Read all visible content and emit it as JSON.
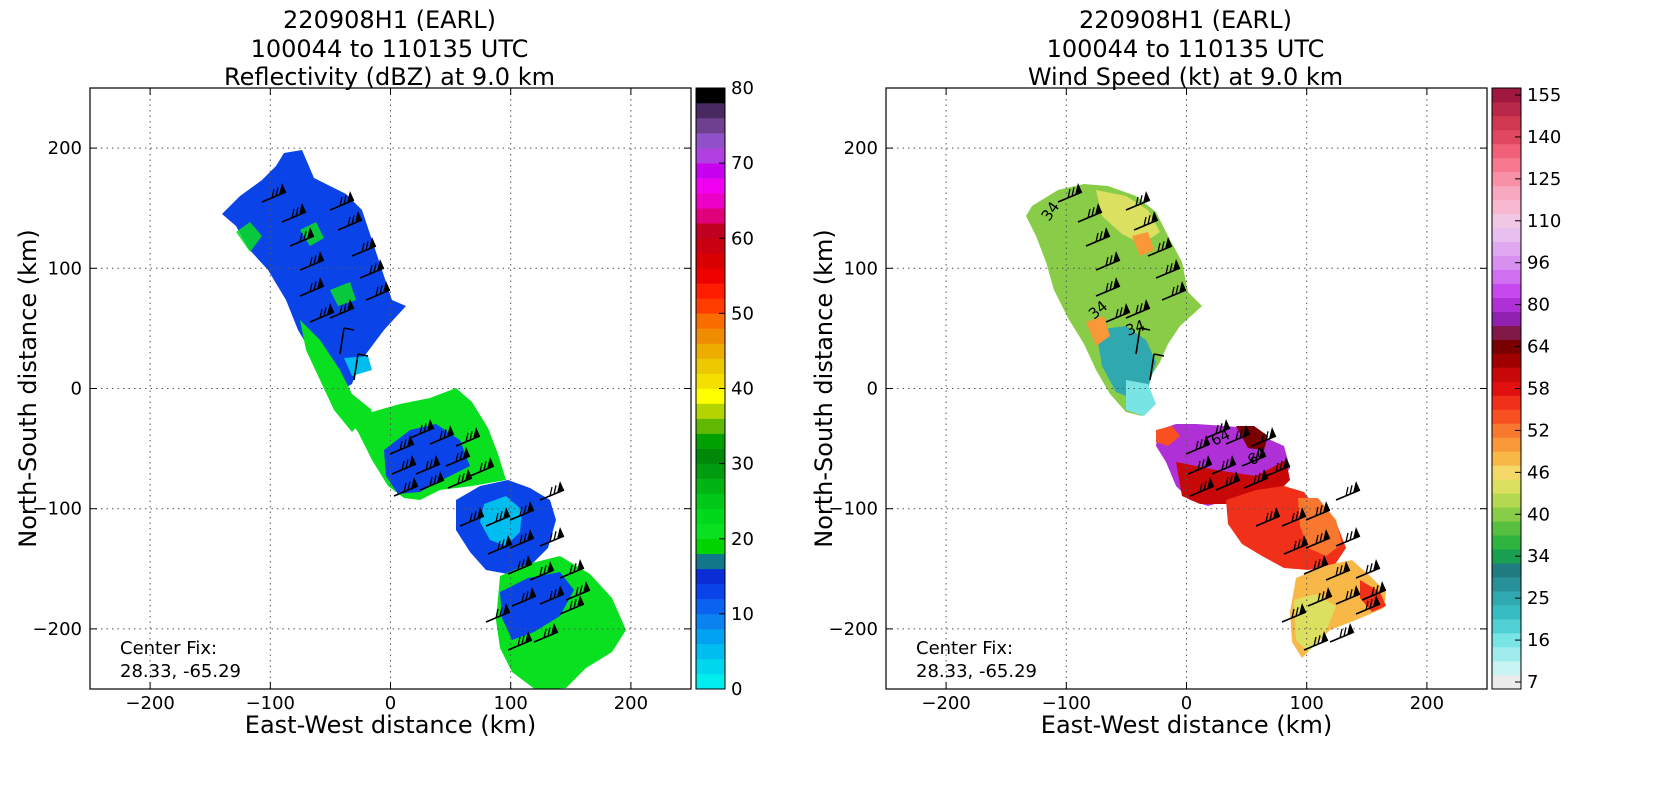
{
  "panels": [
    {
      "title_lines": [
        "220908H1 (EARL)",
        "100044 to 110135 UTC",
        "Reflectivity (dBZ) at 9.0 km"
      ],
      "xlabel": "East-West distance (km)",
      "ylabel": "North-South distance (km)",
      "center_fix_lines": [
        "Center Fix:",
        "28.33, -65.29"
      ]
    },
    {
      "title_lines": [
        "220908H1 (EARL)",
        "100044 to 110135 UTC",
        "Wind Speed (kt) at 9.0 km"
      ],
      "xlabel": "East-West distance (km)",
      "ylabel": "North-South distance (km)",
      "center_fix_lines": [
        "Center Fix:",
        "28.33, -65.29"
      ]
    }
  ],
  "chart_data": [
    {
      "type": "heatmap",
      "title": "220908H1 (EARL) 100044 to 110135 UTC Reflectivity (dBZ) at 9.0 km",
      "xlabel": "East-West distance (km)",
      "ylabel": "North-South distance (km)",
      "xlim": [
        -250,
        250
      ],
      "ylim": [
        -250,
        250
      ],
      "xticks": [
        -200,
        -100,
        0,
        100,
        200
      ],
      "yticks": [
        -200,
        -100,
        0,
        100,
        200
      ],
      "grid": true,
      "colorbar": {
        "label_ticks": [
          0,
          10,
          20,
          30,
          40,
          50,
          60,
          70,
          80
        ],
        "levels": [
          0,
          2.5,
          5,
          7.5,
          10,
          12.5,
          15,
          17.5,
          20,
          22.5,
          25,
          27.5,
          30,
          32.5,
          35,
          37.5,
          40,
          42.5,
          45,
          47.5,
          50,
          52.5,
          55,
          57.5,
          60,
          62.5,
          65,
          67.5,
          70,
          72.5,
          75,
          77.5,
          80
        ],
        "colors": [
          "#00eded",
          "#00d6ed",
          "#00bdf0",
          "#00a1f0",
          "#0a82f0",
          "#0a62f0",
          "#0a44e8",
          "#0a2ed6",
          "#107888",
          "#00d400",
          "#08e020",
          "#00d81c",
          "#00c818",
          "#00b414",
          "#009c10",
          "#008808",
          "#00a000",
          "#60b800",
          "#b4d400",
          "#ffff00",
          "#f4e000",
          "#ecc800",
          "#ecac00",
          "#f08c00",
          "#f86c00",
          "#ff3c00",
          "#ff1c00",
          "#ec0000",
          "#d80000",
          "#c80010",
          "#c00020",
          "#e0007c",
          "#ec00c8",
          "#f000f0",
          "#c800f0",
          "#b040e0",
          "#9050c8",
          "#704090",
          "#482860",
          "#000000"
        ]
      },
      "annotation": [
        "Center Fix:",
        "28.33, -65.29"
      ]
    },
    {
      "type": "heatmap",
      "title": "220908H1 (EARL) 100044 to 110135 UTC Wind Speed (kt) at 9.0 km",
      "xlabel": "East-West distance (km)",
      "ylabel": "North-South distance (km)",
      "xlim": [
        -250,
        250
      ],
      "ylim": [
        -250,
        250
      ],
      "xticks": [
        -200,
        -100,
        0,
        100,
        200
      ],
      "yticks": [
        -200,
        -100,
        0,
        100,
        200
      ],
      "grid": true,
      "contour_labels": [
        34,
        34,
        34,
        64,
        64
      ],
      "colorbar": {
        "label_ticks": [
          7,
          16,
          25,
          34,
          40,
          46,
          52,
          58,
          64,
          80,
          96,
          110,
          125,
          140,
          155
        ],
        "colors": [
          "#ececec",
          "#c8f4f4",
          "#a0ecec",
          "#78e4e4",
          "#50d0d4",
          "#38bcc4",
          "#30a8b0",
          "#289098",
          "#207c80",
          "#18a050",
          "#30b440",
          "#58c040",
          "#88cc48",
          "#b4d850",
          "#dce060",
          "#f4d868",
          "#f8b848",
          "#f89838",
          "#f87830",
          "#f85020",
          "#f03018",
          "#e01010",
          "#c80808",
          "#a00000",
          "#780000",
          "#801848",
          "#9020b0",
          "#b030d8",
          "#c848f0",
          "#d070f0",
          "#d890f0",
          "#e0a8f0",
          "#e8c0f0",
          "#f0c8e4",
          "#f8b8d0",
          "#f8a8c0",
          "#f890a8",
          "#f87890",
          "#f06078",
          "#e04860",
          "#d03850",
          "#b82848",
          "#a01840"
        ]
      },
      "annotation": [
        "Center Fix:",
        "28.33, -65.29"
      ]
    }
  ]
}
